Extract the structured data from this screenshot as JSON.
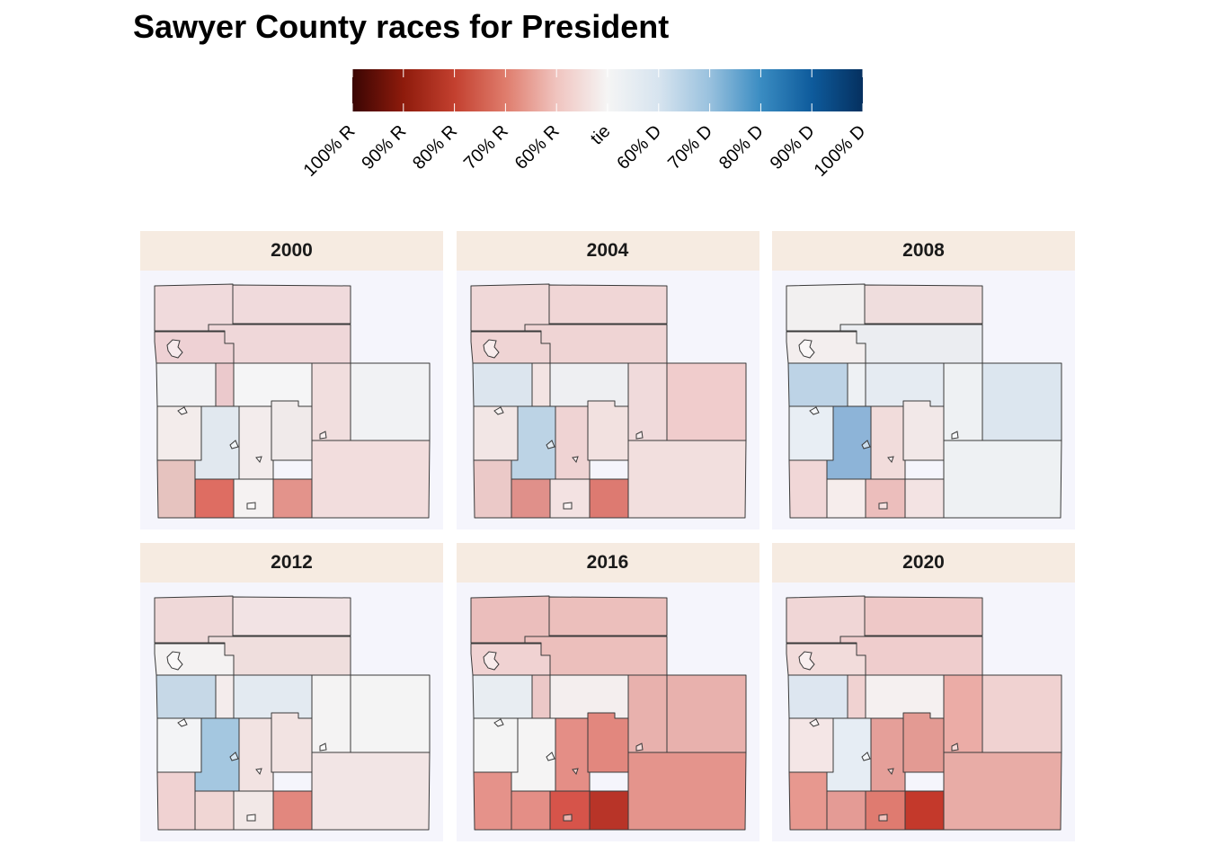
{
  "title": "Sawyer County races for President",
  "legend": {
    "labels": [
      "100% R",
      "90% R",
      "80% R",
      "70% R",
      "60% R",
      "tie",
      "60% D",
      "70% D",
      "80% D",
      "90% D",
      "100% D"
    ],
    "colors": [
      "#3a0503",
      "#8e1b0c",
      "#c3402f",
      "#df7c6c",
      "#f0c4bf",
      "#f5f5f5",
      "#d7e4ef",
      "#99c1de",
      "#3a8cc2",
      "#0e5b9c",
      "#05305f"
    ]
  },
  "facets": [
    {
      "year": "2000",
      "fills": [
        "#f0dadc",
        "#f0dadc",
        "#efd7d9",
        "#eed1d4",
        "#f2f2f4",
        "#ebc9cc",
        "#f5f5f6",
        "#f3eceb",
        "#e1e8ef",
        "#f3ecec",
        "#f0eaea",
        "#f1dede",
        "#f1f2f4",
        "#e6c3bf",
        "#de6d62",
        "#f5f2f2",
        "#e3938b",
        "#f2dddd"
      ]
    },
    {
      "year": "2004",
      "fills": [
        "#f0d8d8",
        "#f0d6d6",
        "#efd4d4",
        "#efd4d4",
        "#dce5ee",
        "#f3e4e3",
        "#eeeff2",
        "#f2e6e5",
        "#bcd3e5",
        "#efd3d3",
        "#f2e1e0",
        "#f0dadb",
        "#f0cccc",
        "#ebc9c8",
        "#e0908a",
        "#f3e2e2",
        "#dd7a71",
        "#f2dfde"
      ]
    },
    {
      "year": "2008",
      "fills": [
        "#f2f0f0",
        "#efdddd",
        "#ebedf1",
        "#f3eeee",
        "#bdd3e6",
        "#eef1f4",
        "#e5ebf2",
        "#e8eef4",
        "#8db4d8",
        "#f1dcdb",
        "#f2e8e8",
        "#eef1f3",
        "#dce6ef",
        "#f1d7d7",
        "#f6edec",
        "#ecbebc",
        "#f3e3e3",
        "#eef1f3"
      ]
    },
    {
      "year": "2012",
      "fills": [
        "#efd8d8",
        "#f2e3e4",
        "#efdedd",
        "#f4f2f2",
        "#c6d8e7",
        "#f4ecec",
        "#e3eaf1",
        "#f3f4f6",
        "#a4c7e0",
        "#f2e3e2",
        "#f2e3e2",
        "#f4f3f3",
        "#f4f4f4",
        "#f0d2d2",
        "#f0d6d4",
        "#f2e8e7",
        "#e2877e",
        "#f2e5e5"
      ]
    },
    {
      "year": "2016",
      "fills": [
        "#ebbebc",
        "#ecbfbc",
        "#ecbfbc",
        "#f0d2d2",
        "#e8edf2",
        "#ecc8c7",
        "#f4eeee",
        "#f4f4f4",
        "#f5f4f4",
        "#e48e86",
        "#e2877e",
        "#e8b1ad",
        "#e8b1ad",
        "#e5928a",
        "#e48e86",
        "#d6544a",
        "#b83428",
        "#e4948c"
      ]
    },
    {
      "year": "2020",
      "fills": [
        "#f0d6d6",
        "#eec8c7",
        "#efcdcd",
        "#f2dcdb",
        "#dde6f0",
        "#f0d2d1",
        "#f5f0f0",
        "#f4e6e6",
        "#e6edf4",
        "#e59f99",
        "#e39a93",
        "#ebaca6",
        "#f0d2d1",
        "#e7988f",
        "#e49b95",
        "#df7b70",
        "#c4392b",
        "#e8aca6"
      ]
    }
  ]
}
